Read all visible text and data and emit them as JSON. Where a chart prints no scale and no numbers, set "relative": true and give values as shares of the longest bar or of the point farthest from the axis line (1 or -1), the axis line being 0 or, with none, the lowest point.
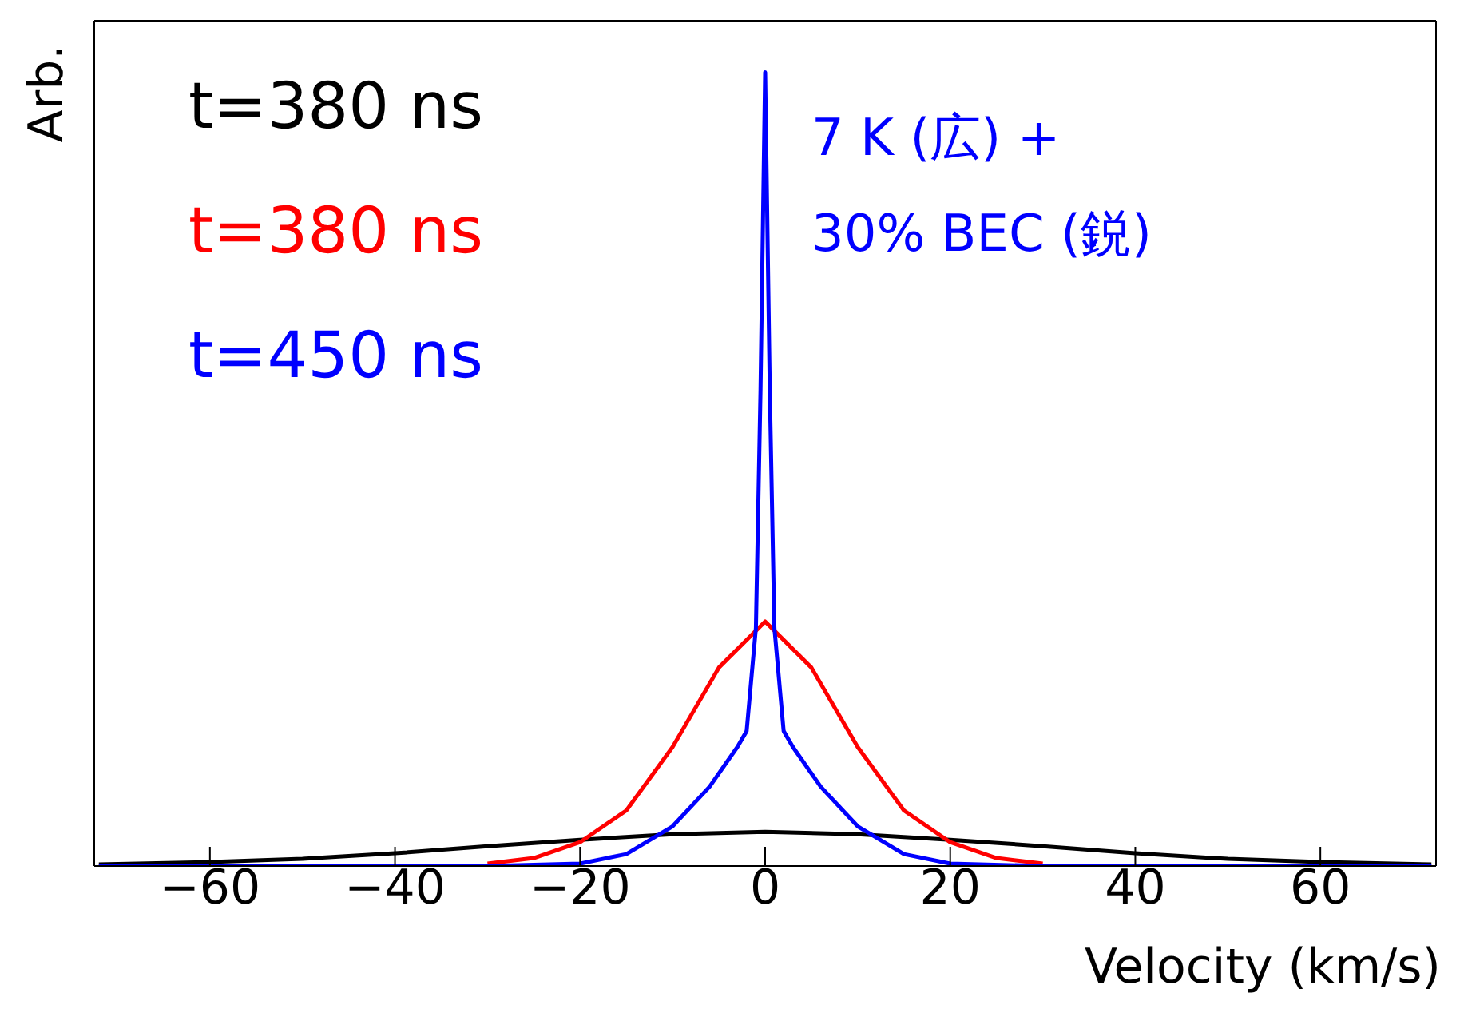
{
  "chart_data": {
    "type": "line",
    "relative": true,
    "xlabel": "Velocity (km/s)",
    "ylabel": "Arb.",
    "xlim": [
      -72.5,
      72.5
    ],
    "xticks": [
      -60,
      -40,
      -20,
      0,
      20,
      40,
      60
    ],
    "legend": "top left",
    "marker": "none",
    "line_style": "solid",
    "annotations": [
      "7 K (広) +\n30% BEC (鋭)"
    ],
    "series": [
      {
        "name": "t=380 ns",
        "color": "#000000",
        "x": [
          -72,
          -60,
          -50,
          -40,
          -30,
          -20,
          -10,
          0,
          10,
          20,
          30,
          40,
          50,
          60,
          72
        ],
        "values": [
          0.002,
          0.005,
          0.009,
          0.016,
          0.025,
          0.033,
          0.04,
          0.043,
          0.04,
          0.033,
          0.025,
          0.016,
          0.009,
          0.005,
          0.002
        ]
      },
      {
        "name": "t=380 ns",
        "color": "#ff0000",
        "x": [
          -30,
          -25,
          -20,
          -15,
          -10,
          -5,
          0,
          5,
          10,
          15,
          20,
          25,
          30
        ],
        "values": [
          0.003,
          0.01,
          0.03,
          0.07,
          0.15,
          0.25,
          0.308,
          0.25,
          0.15,
          0.07,
          0.03,
          0.01,
          0.003
        ]
      },
      {
        "name": "t=450 ns",
        "color": "#0000ff",
        "x": [
          -72,
          -30,
          -20,
          -15,
          -10,
          -6,
          -3,
          -2,
          -1,
          -0.5,
          0,
          0.5,
          1,
          2,
          3,
          6,
          10,
          15,
          20,
          30,
          72
        ],
        "values": [
          0,
          0,
          0.003,
          0.015,
          0.05,
          0.1,
          0.15,
          0.17,
          0.3,
          0.6,
          1,
          0.6,
          0.3,
          0.17,
          0.15,
          0.1,
          0.05,
          0.015,
          0.003,
          0,
          0
        ]
      }
    ]
  }
}
